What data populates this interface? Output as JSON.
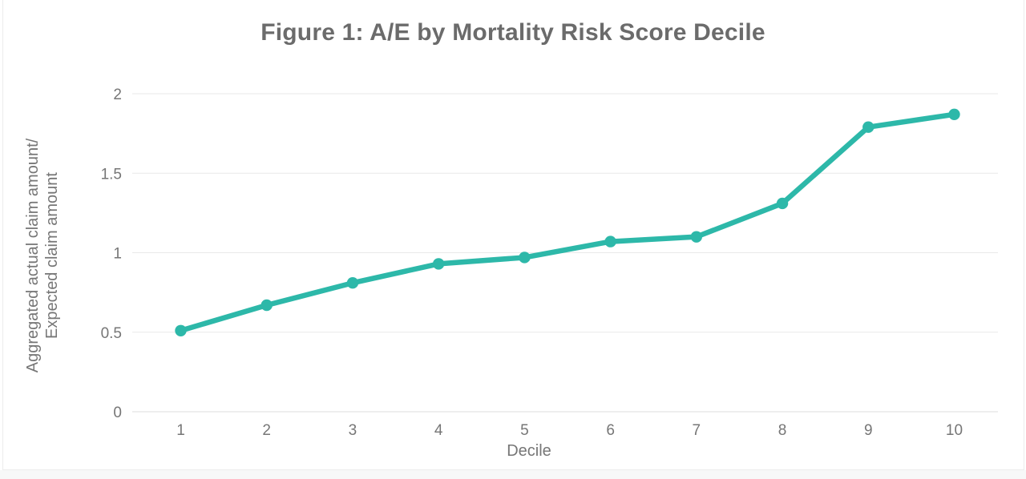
{
  "chart_data": {
    "type": "line",
    "title": "Figure 1: A/E by Mortality Risk Score Decile",
    "xlabel": "Decile",
    "ylabel_lines": [
      "Aggregated actual claim amount/",
      "Expected claim amount"
    ],
    "categories": [
      "1",
      "2",
      "3",
      "4",
      "5",
      "6",
      "7",
      "8",
      "9",
      "10"
    ],
    "values": [
      0.51,
      0.67,
      0.81,
      0.93,
      0.97,
      1.07,
      1.1,
      1.31,
      1.79,
      1.87
    ],
    "ylim": [
      0,
      2
    ],
    "yticks": [
      0,
      0.5,
      1,
      1.5,
      2
    ],
    "ytick_labels": [
      "0",
      "0.5",
      "1",
      "1.5",
      "2"
    ],
    "grid": true,
    "legend": "none",
    "colors": {
      "line": "#2db8a9",
      "title_text": "#6b6b6b",
      "axis_text": "#767676",
      "gridline": "#e9e9e9",
      "baseline": "#dedede"
    }
  }
}
